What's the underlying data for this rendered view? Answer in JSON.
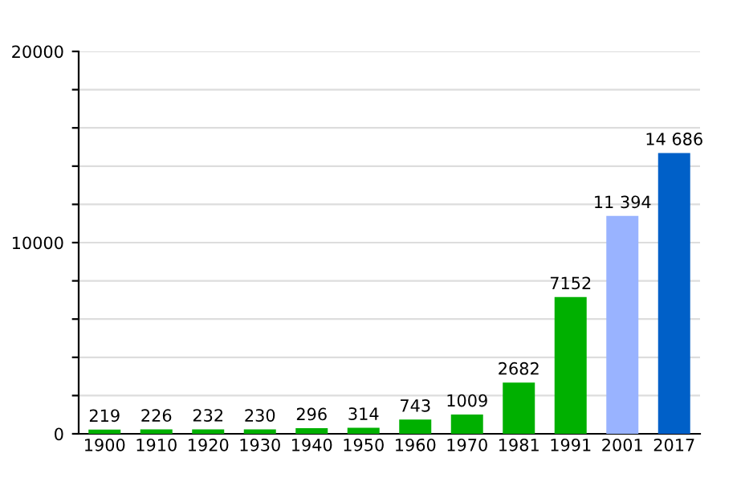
{
  "chart_data": {
    "type": "bar",
    "categories": [
      "1900",
      "1910",
      "1920",
      "1930",
      "1940",
      "1950",
      "1960",
      "1970",
      "1981",
      "1991",
      "2001",
      "2017"
    ],
    "values": [
      219,
      226,
      232,
      230,
      296,
      314,
      743,
      1009,
      2682,
      7152,
      11394,
      14686
    ],
    "colors": [
      "#00b000",
      "#00b000",
      "#00b000",
      "#00b000",
      "#00b000",
      "#00b000",
      "#00b000",
      "#00b000",
      "#00b000",
      "#00b000",
      "#99b3ff",
      "#0060c8"
    ],
    "value_labels": [
      "219",
      "226",
      "232",
      "230",
      "296",
      "314",
      "743",
      "1009",
      "2682",
      "7152",
      "11 394",
      "14 686"
    ],
    "ylim": [
      0,
      20000
    ],
    "yticks": [
      0,
      {
        "value": 2000,
        "label": null
      },
      {
        "value": 4000,
        "label": null
      },
      {
        "value": 6000,
        "label": null
      },
      {
        "value": 8000,
        "label": null
      },
      10000,
      {
        "value": 12000,
        "label": null
      },
      {
        "value": 14000,
        "label": null
      },
      {
        "value": 16000,
        "label": null
      },
      {
        "value": 18000,
        "label": null
      },
      20000
    ],
    "grid": "y"
  }
}
